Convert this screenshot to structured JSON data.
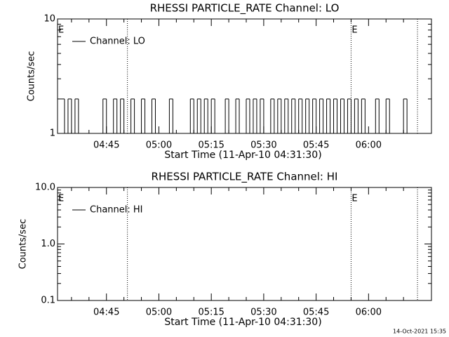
{
  "chart_data": [
    {
      "type": "line",
      "title": "RHESSI PARTICLE_RATE Channel: LO",
      "xlabel": "Start Time (11-Apr-10 04:31:30)",
      "ylabel": "Counts/sec",
      "xlim": [
        "04:31",
        "06:18"
      ],
      "xticks": [
        "04:45",
        "05:00",
        "05:15",
        "05:30",
        "05:45",
        "06:00"
      ],
      "ylim": [
        1,
        10
      ],
      "yticks": [
        1,
        10
      ],
      "log_y": true,
      "legend": "upper left",
      "vlines": [
        "04:51",
        "05:55",
        "06:14"
      ],
      "annotations": [
        {
          "text": "E",
          "x": "04:31"
        },
        {
          "text": "E",
          "x": "05:55"
        }
      ],
      "series": [
        {
          "name": "Channel: LO",
          "color": "#000000",
          "x": [
            "04:32",
            "04:33",
            "04:34",
            "04:35",
            "04:36",
            "04:37",
            "04:44",
            "04:45",
            "04:47",
            "04:48",
            "04:49",
            "04:50",
            "04:52",
            "04:53",
            "04:55",
            "04:56",
            "04:58",
            "04:59",
            "05:03",
            "05:04",
            "05:09",
            "05:10",
            "05:11",
            "05:12",
            "05:13",
            "05:14",
            "05:15",
            "05:16",
            "05:19",
            "05:20",
            "05:22",
            "05:23",
            "05:25",
            "05:26",
            "05:27",
            "05:28",
            "05:29",
            "05:30",
            "05:32",
            "05:33",
            "05:34",
            "05:35",
            "05:36",
            "05:37",
            "05:38",
            "05:39",
            "05:40",
            "05:41",
            "05:42",
            "05:43",
            "05:44",
            "05:45",
            "05:46",
            "05:47",
            "05:48",
            "05:49",
            "05:50",
            "05:51",
            "05:52",
            "05:53",
            "05:54",
            "05:55",
            "05:56",
            "05:57",
            "05:58",
            "05:59",
            "06:02",
            "06:03",
            "06:05",
            "06:06",
            "06:10",
            "06:11"
          ],
          "values": [
            2,
            1,
            2,
            1,
            2,
            1,
            2,
            1,
            2,
            1,
            2,
            1,
            2,
            1,
            2,
            1,
            2,
            1,
            2,
            1,
            2,
            1,
            2,
            1,
            2,
            1,
            2,
            1,
            2,
            1,
            2,
            1,
            2,
            1,
            2,
            1,
            2,
            1,
            2,
            1,
            2,
            1,
            2,
            1,
            2,
            1,
            2,
            1,
            2,
            1,
            2,
            1,
            2,
            1,
            2,
            1,
            2,
            1,
            2,
            1,
            2,
            1,
            2,
            1,
            2,
            1,
            2,
            1,
            2,
            1,
            2,
            1
          ]
        }
      ]
    },
    {
      "type": "line",
      "title": "RHESSI PARTICLE_RATE Channel: HI",
      "xlabel": "Start Time (11-Apr-10 04:31:30)",
      "ylabel": "Counts/sec",
      "xlim": [
        "04:31",
        "06:18"
      ],
      "xticks": [
        "04:45",
        "05:00",
        "05:15",
        "05:30",
        "05:45",
        "06:00"
      ],
      "ylim": [
        0.1,
        10
      ],
      "yticks": [
        0.1,
        {
          "value": 1,
          "label": "1.0"
        },
        {
          "value": 10,
          "label": "10.0"
        }
      ],
      "log_y": true,
      "legend": "upper left",
      "vlines": [
        "04:51",
        "05:55",
        "06:14"
      ],
      "annotations": [
        {
          "text": "E",
          "x": "04:31"
        },
        {
          "text": "E",
          "x": "05:55"
        }
      ],
      "series": [
        {
          "name": "Channel: HI",
          "color": "#000000",
          "x": [],
          "values": []
        }
      ]
    }
  ],
  "footer": "14-Oct-2021 15:35"
}
